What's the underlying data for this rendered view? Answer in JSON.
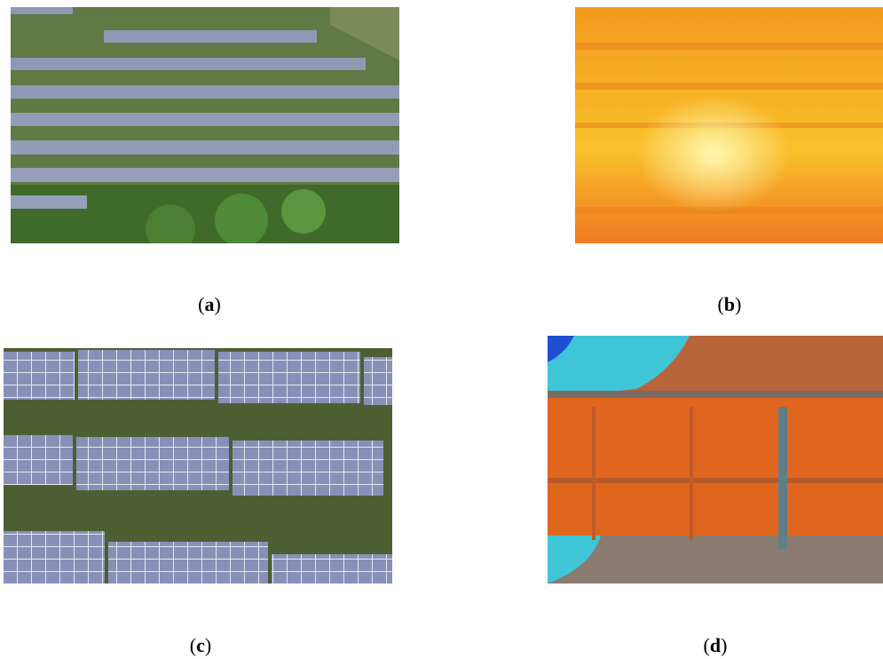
{
  "panels": [
    {
      "parts": [
        "(",
        "a",
        ")"
      ]
    },
    {
      "parts": [
        "(",
        "b",
        ")"
      ]
    },
    {
      "parts": [
        "(",
        "c",
        ")"
      ]
    },
    {
      "parts": [
        "(",
        "d",
        ")"
      ]
    }
  ]
}
